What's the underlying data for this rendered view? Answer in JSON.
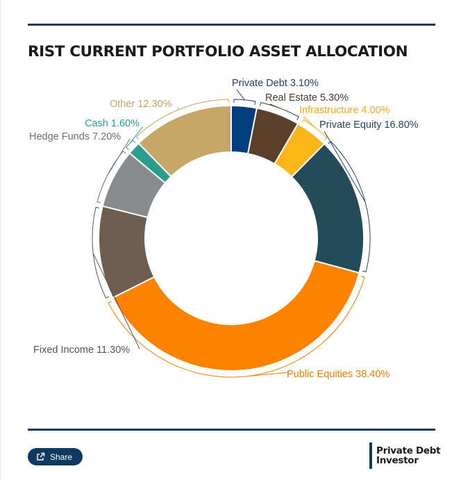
{
  "title": "RIST CURRENT PORTFOLIO ASSET ALLOCATION",
  "share": {
    "label": "Share",
    "icon": "share-icon"
  },
  "logo": {
    "line1": "Private Debt",
    "line2": "Investor"
  },
  "chart_data": {
    "type": "pie",
    "donut": true,
    "title": "RIST CURRENT PORTFOLIO ASSET ALLOCATION",
    "legend": "none",
    "slices": [
      {
        "name": "Private Debt",
        "value": 3.1,
        "label": "Private Debt 3.10%",
        "color": "#003e7e",
        "text_color": "#1f3f66"
      },
      {
        "name": "Real Estate",
        "value": 5.3,
        "label": "Real Estate 5.30%",
        "color": "#5a3f2b",
        "text_color": "#4a3a2e"
      },
      {
        "name": "Infrastructure",
        "value": 4.0,
        "label": "Infrastructure 4.00%",
        "color": "#fcb61a",
        "text_color": "#f4ab19"
      },
      {
        "name": "Private Equity",
        "value": 16.8,
        "label": "Private Equity 16.80%",
        "color": "#244b5a",
        "text_color": "#254654"
      },
      {
        "name": "Public Equities",
        "value": 38.4,
        "label": "Public Equities 38.40%",
        "color": "#fd8200",
        "text_color": "#f07d09"
      },
      {
        "name": "Fixed Income",
        "value": 11.3,
        "label": "Fixed Income 11.30%",
        "color": "#6e5e52",
        "text_color": "#555555"
      },
      {
        "name": "Hedge Funds",
        "value": 7.2,
        "label": "Hedge Funds 7.20%",
        "color": "#888b8d",
        "text_color": "#6d6d6d"
      },
      {
        "name": "Cash",
        "value": 1.6,
        "label": "Cash 1.60%",
        "color": "#2a9d8f",
        "text_color": "#2a9d8f"
      },
      {
        "name": "Other",
        "value": 12.3,
        "label": "Other 12.30%",
        "color": "#c6a767",
        "text_color": "#c3a25d"
      }
    ]
  }
}
